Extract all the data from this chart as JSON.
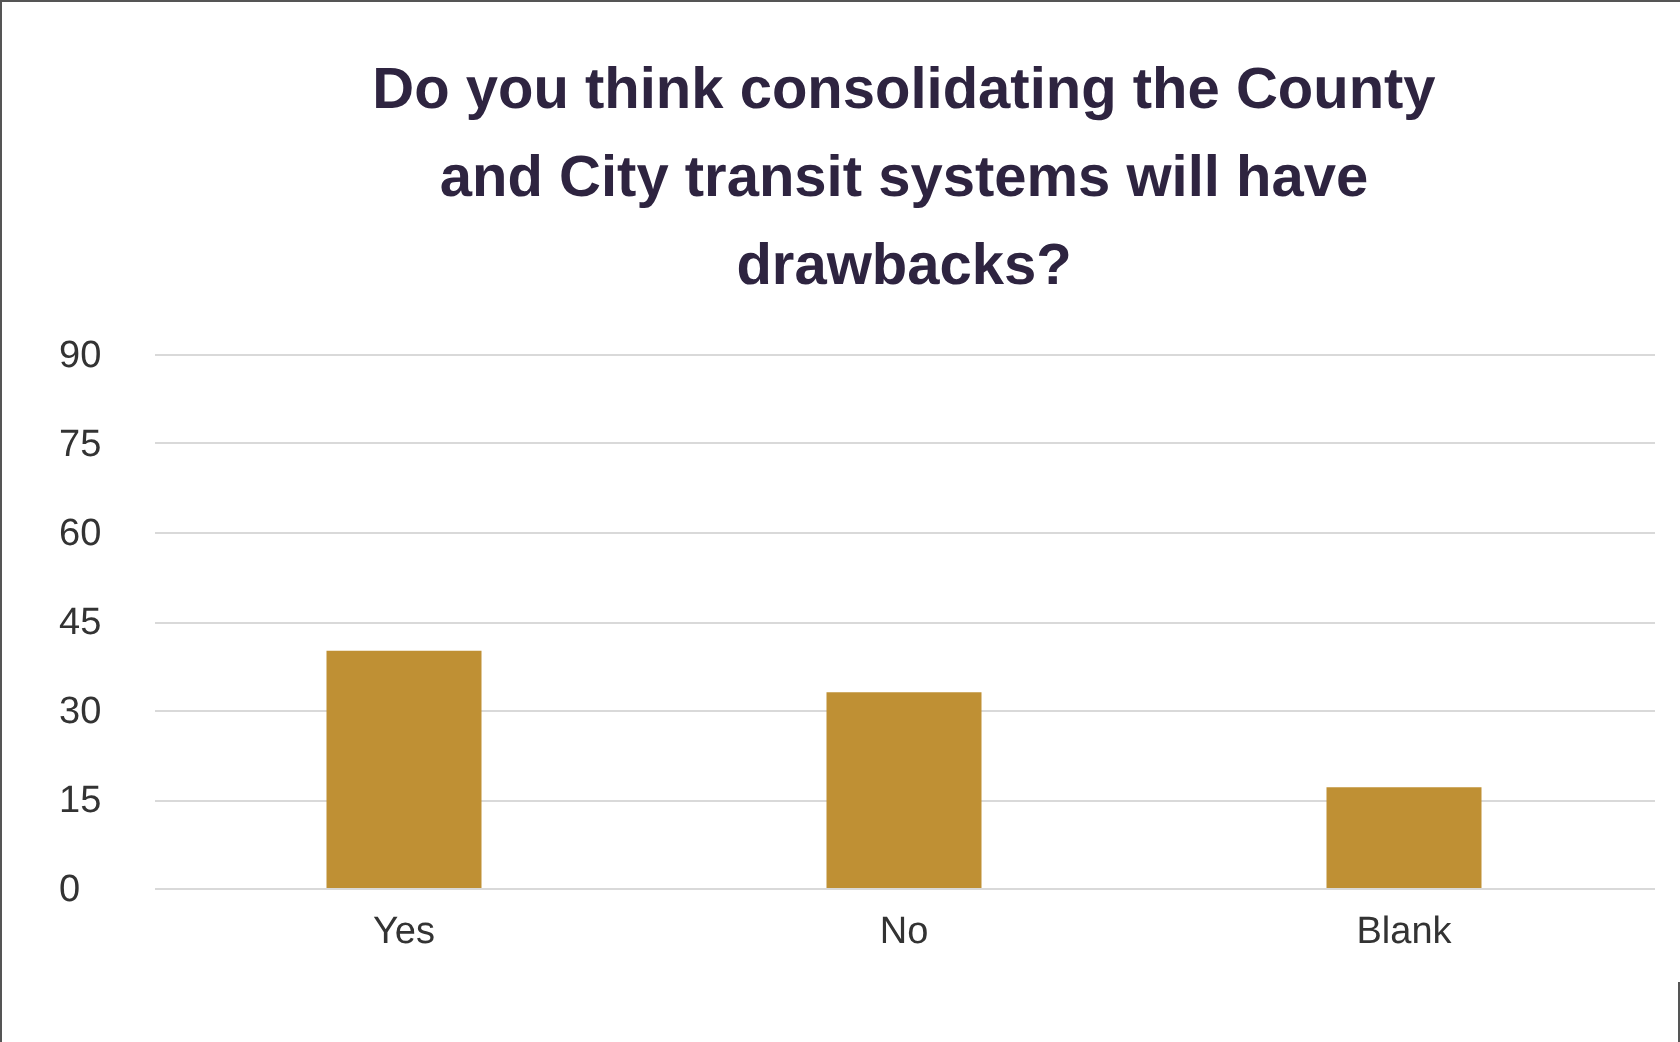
{
  "chart_data": {
    "type": "bar",
    "title": "Do you think consolidating the County and City transit systems will have drawbacks?",
    "categories": [
      "Yes",
      "No",
      "Blank"
    ],
    "values": [
      40,
      33,
      17
    ],
    "color": "#bf9034",
    "ylim": [
      0,
      90
    ],
    "yticks": [
      0,
      15,
      30,
      45,
      60,
      75,
      90
    ],
    "grid": "y"
  }
}
